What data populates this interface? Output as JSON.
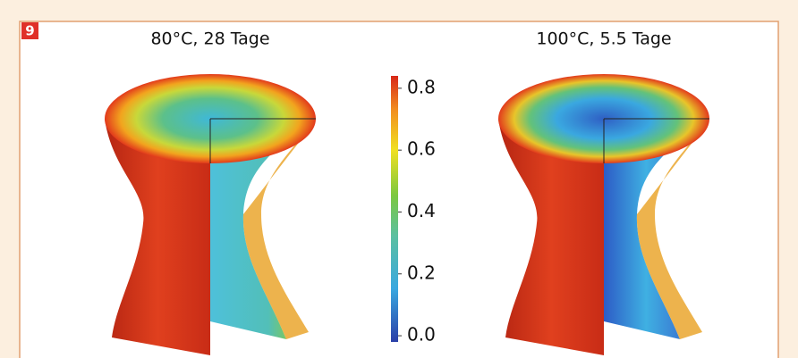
{
  "badge": "9",
  "panels": [
    {
      "title": "80°C, 28 Tage"
    },
    {
      "title": "100°C, 5.5 Tage"
    }
  ],
  "colorbar": {
    "lim": [
      -0.02,
      0.84
    ],
    "ticks": [
      {
        "value": 0,
        "label": "0.0"
      },
      0.2,
      0.4,
      0.6,
      0.8
    ]
  }
}
